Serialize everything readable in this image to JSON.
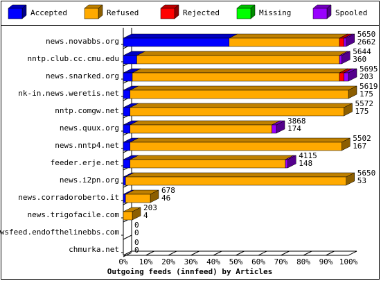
{
  "chart_data": {
    "type": "bar3d",
    "title": "Outgoing feeds (innfeed) by Articles",
    "categories": [
      "news.novabbs.org",
      "nntp.club.cc.cmu.edu",
      "news.snarked.org",
      "nk-in.news.weretis.net",
      "nntp.comgw.net",
      "news.quux.org",
      "news.nntp4.net",
      "feeder.erje.net",
      "news.i2pn.org",
      "news.corradoroberto.it",
      "news.trigofacile.com",
      "newsfeed.endofthelinebbs.com",
      "chmurka.net"
    ],
    "series": [
      {
        "name": "Accepted",
        "color": "#0000ff",
        "values": [
          47,
          6,
          4,
          3,
          3,
          3,
          3,
          3,
          1,
          1,
          0,
          0,
          0
        ]
      },
      {
        "name": "Refused",
        "color": "#ffaa00",
        "values": [
          49,
          90,
          92,
          97,
          95,
          63,
          94,
          69,
          98,
          11,
          4,
          0,
          0
        ]
      },
      {
        "name": "Rejected",
        "color": "#ff0000",
        "values": [
          2,
          0,
          2,
          0,
          0,
          0,
          0,
          0,
          0,
          0,
          0,
          0,
          0
        ]
      },
      {
        "name": "Missing",
        "color": "#00ff00",
        "values": [
          0,
          0,
          0,
          0,
          0,
          0,
          0,
          0,
          0,
          0,
          0,
          0,
          0
        ]
      },
      {
        "name": "Spooled",
        "color": "#9900ff",
        "values": [
          1,
          1,
          2,
          0,
          0,
          2,
          0,
          1,
          0,
          0,
          0,
          0,
          0
        ]
      }
    ],
    "offered": [
      5650,
      5644,
      5695,
      5619,
      5572,
      3868,
      5502,
      4115,
      5650,
      678,
      203,
      0,
      0
    ],
    "accepted": [
      2662,
      360,
      203,
      175,
      175,
      174,
      167,
      148,
      53,
      46,
      4,
      0,
      0
    ],
    "xlim": [
      0,
      100
    ],
    "xticks": [
      {
        "value": 0,
        "label": "0%"
      },
      {
        "value": 10,
        "label": "10%"
      },
      {
        "value": 20,
        "label": "20%"
      },
      {
        "value": 30,
        "label": "30%"
      },
      {
        "value": 40,
        "label": "40%"
      },
      {
        "value": 50,
        "label": "50%"
      },
      {
        "value": 60,
        "label": "60%"
      },
      {
        "value": 70,
        "label": "70%"
      },
      {
        "value": 80,
        "label": "80%"
      },
      {
        "value": 90,
        "label": "90%"
      },
      {
        "value": 100,
        "label": "100%"
      }
    ]
  }
}
